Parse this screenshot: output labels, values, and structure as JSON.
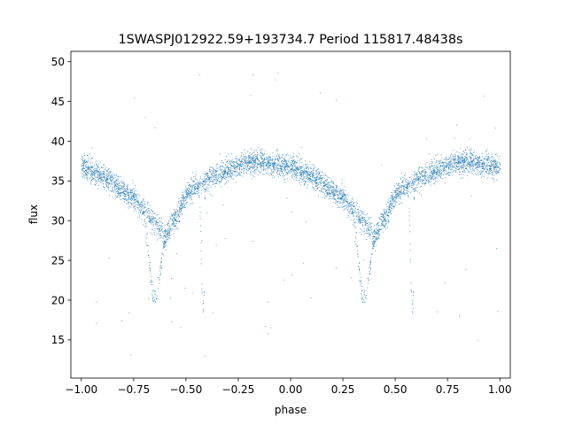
{
  "chart_data": {
    "type": "scatter",
    "title": "1SWASPJ012922.59+193734.7 Period 115817.48438s",
    "xlabel": "phase",
    "ylabel": "flux",
    "xlim": [
      -1.05,
      1.05
    ],
    "ylim": [
      10.2,
      51.3
    ],
    "xticks": [
      -1.0,
      -0.75,
      -0.5,
      -0.25,
      0.0,
      0.25,
      0.5,
      0.75,
      1.0
    ],
    "xtick_labels": [
      "−1.00",
      "−0.75",
      "−0.50",
      "−0.25",
      "0.00",
      "0.25",
      "0.50",
      "0.75",
      "1.00"
    ],
    "yticks": [
      15,
      20,
      25,
      30,
      35,
      40,
      45,
      50
    ],
    "ytick_labels": [
      "15",
      "20",
      "25",
      "30",
      "35",
      "40",
      "45",
      "50"
    ],
    "grid": false,
    "point_color": "#1f77b4",
    "light_curve_profile": {
      "description_points_phase": [
        0.0,
        0.05,
        0.1,
        0.15,
        0.2,
        0.25,
        0.3,
        0.35,
        0.4,
        0.45,
        0.5,
        0.55,
        0.6,
        0.65,
        0.7,
        0.75,
        0.8,
        0.85,
        0.9,
        0.95,
        1.0
      ],
      "upper_branch_flux": [
        36.8,
        36.3,
        35.6,
        34.8,
        33.8,
        32.8,
        31.5,
        29.8,
        28.3,
        30.5,
        33.2,
        34.5,
        35.2,
        35.8,
        36.4,
        37.0,
        37.3,
        37.4,
        37.2,
        37.0,
        36.8
      ],
      "primary_minimum": {
        "phase": 0.35,
        "flux": 20.0
      },
      "secondary_minimum": {
        "phase": 0.58,
        "flux": 18.8
      }
    }
  }
}
